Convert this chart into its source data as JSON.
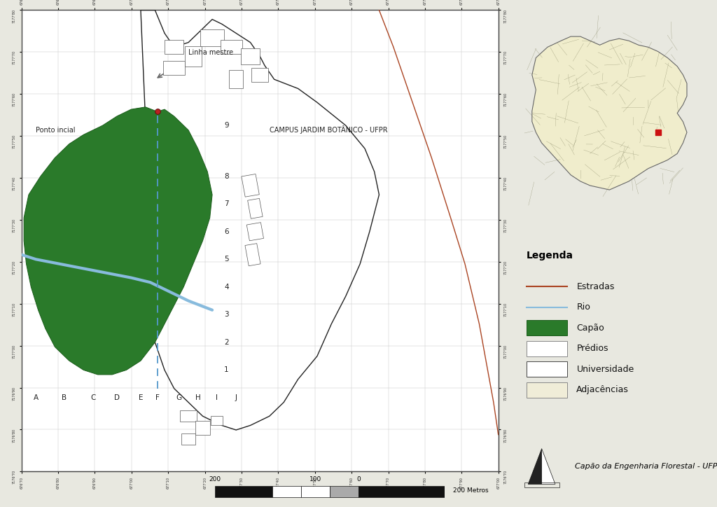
{
  "bg_color": "#e8e8e0",
  "map_bg": "#ffffff",
  "grid_color": "#c8c8c8",
  "capao_color": "#2a7a2a",
  "capao_border": "#1a5c1a",
  "road_color": "#aa4422",
  "river_color": "#88bbdd",
  "building_color": "#ffffff",
  "building_border": "#555555",
  "uni_border": "#222222",
  "title_text": "CAMPUS JARDIM BOTÂNICO - UFPR",
  "legend_title": "Legenda",
  "legend_items": [
    "Estradas",
    "Rio",
    "Capão",
    "Prédios",
    "Universidade",
    "Adjacências"
  ],
  "col_labels": [
    "A",
    "B",
    "C",
    "D",
    "E",
    "F",
    "G",
    "H",
    "I",
    "J"
  ],
  "row_labels": [
    "1",
    "2",
    "3",
    "4",
    "5",
    "6",
    "7",
    "8",
    "9"
  ],
  "annotation_linha": "Linha mestre",
  "annotation_ponto": "Ponto incial",
  "footer_text": "Capão da Engenharia Florestal - UFPR",
  "inset_bg": "#f0edcc",
  "inset_border": "#888888",
  "adjacencias_color": "#f0edd8"
}
